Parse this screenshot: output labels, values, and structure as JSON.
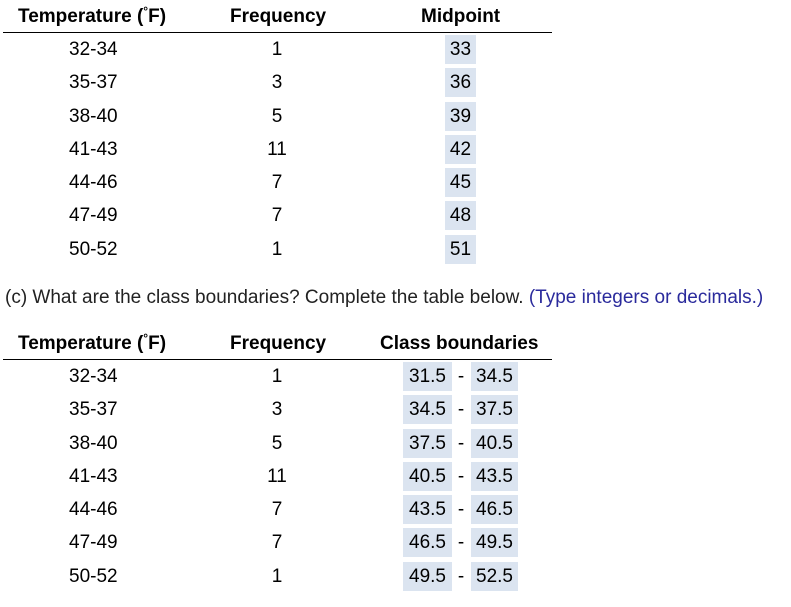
{
  "table1": {
    "headers": {
      "temp_prefix": "Temperature (",
      "degree": "°",
      "temp_suffix": "F)",
      "frequency": "Frequency",
      "midpoint": "Midpoint"
    },
    "rows": [
      {
        "class": "32-34",
        "frequency": "1",
        "midpoint": "33"
      },
      {
        "class": "35-37",
        "frequency": "3",
        "midpoint": "36"
      },
      {
        "class": "38-40",
        "frequency": "5",
        "midpoint": "39"
      },
      {
        "class": "41-43",
        "frequency": "11",
        "midpoint": "42"
      },
      {
        "class": "44-46",
        "frequency": "7",
        "midpoint": "45"
      },
      {
        "class": "47-49",
        "frequency": "7",
        "midpoint": "48"
      },
      {
        "class": "50-52",
        "frequency": "1",
        "midpoint": "51"
      }
    ]
  },
  "question": {
    "text": "(c) What are the class boundaries? Complete the table below.",
    "hint": "(Type integers or decimals.)"
  },
  "table2": {
    "headers": {
      "temp_prefix": "Temperature (",
      "degree": "°",
      "temp_suffix": "F)",
      "frequency": "Frequency",
      "boundaries": "Class boundaries"
    },
    "separator": "-",
    "rows": [
      {
        "class": "32-34",
        "frequency": "1",
        "lower": "31.5",
        "upper": "34.5"
      },
      {
        "class": "35-37",
        "frequency": "3",
        "lower": "34.5",
        "upper": "37.5"
      },
      {
        "class": "38-40",
        "frequency": "5",
        "lower": "37.5",
        "upper": "40.5"
      },
      {
        "class": "41-43",
        "frequency": "11",
        "lower": "40.5",
        "upper": "43.5"
      },
      {
        "class": "44-46",
        "frequency": "7",
        "lower": "43.5",
        "upper": "46.5"
      },
      {
        "class": "47-49",
        "frequency": "7",
        "lower": "46.5",
        "upper": "49.5"
      },
      {
        "class": "50-52",
        "frequency": "1",
        "lower": "49.5",
        "upper": "52.5"
      }
    ]
  },
  "colors": {
    "answer_background": "#dbe4f0",
    "hint_text": "#2a2a9c"
  }
}
